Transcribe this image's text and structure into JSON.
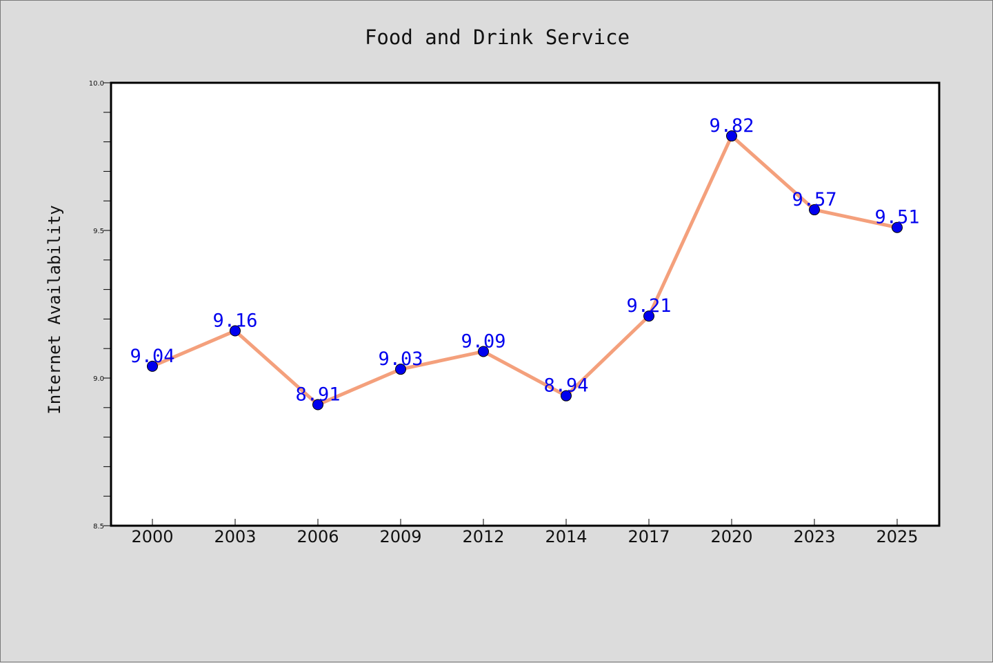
{
  "chart_data": {
    "type": "line",
    "title": "Food and Drink Service",
    "xlabel": "",
    "ylabel": "Internet Availability",
    "x": [
      "2000",
      "2003",
      "2006",
      "2009",
      "2012",
      "2014",
      "2017",
      "2020",
      "2023",
      "2025"
    ],
    "series": [
      {
        "values": [
          9.04,
          9.16,
          8.91,
          9.03,
          9.09,
          8.94,
          9.21,
          9.82,
          9.57,
          9.51
        ],
        "labels": [
          "9.04",
          "9.16",
          "8.91",
          "9.03",
          "9.09",
          "8.94",
          "9.21",
          "9.82",
          "9.57",
          "9.51"
        ],
        "line_color": "#f4a07c",
        "marker_color": "#0000ee",
        "label_color": "#0000ee"
      }
    ],
    "ylim": [
      8.5,
      10.0
    ],
    "yticks": [
      "8.5",
      "9.0",
      "9.5",
      "10.0"
    ],
    "yticks_minor_step": 0.1,
    "grid": false,
    "legend": "none",
    "background": "#dcdcdc",
    "plot_background": "#ffffff"
  }
}
